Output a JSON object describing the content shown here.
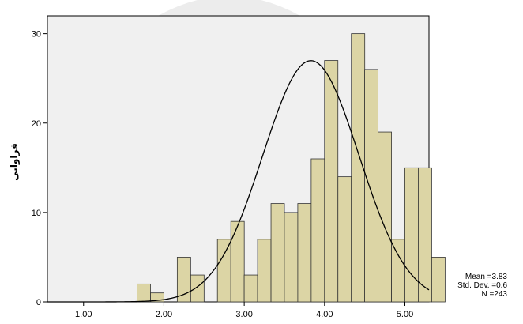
{
  "chart_data": {
    "type": "bar",
    "subtype": "histogram_with_normal_curve",
    "ylabel": "فراوانی",
    "xlabel": "",
    "title": "",
    "xlim": [
      0.55,
      5.3
    ],
    "ylim": [
      0,
      32
    ],
    "x_ticks": [
      "1.00",
      "2.00",
      "3.00",
      "4.00",
      "5.00"
    ],
    "y_ticks": [
      "0",
      "10",
      "20",
      "30"
    ],
    "bin_width": 0.167,
    "bins": [
      {
        "x": 1.75,
        "count": 2
      },
      {
        "x": 1.917,
        "count": 1
      },
      {
        "x": 2.083,
        "count": 0
      },
      {
        "x": 2.25,
        "count": 5
      },
      {
        "x": 2.417,
        "count": 3
      },
      {
        "x": 2.583,
        "count": 0
      },
      {
        "x": 2.75,
        "count": 7
      },
      {
        "x": 2.917,
        "count": 9
      },
      {
        "x": 3.083,
        "count": 3
      },
      {
        "x": 3.25,
        "count": 7
      },
      {
        "x": 3.417,
        "count": 11
      },
      {
        "x": 3.583,
        "count": 10
      },
      {
        "x": 3.75,
        "count": 11
      },
      {
        "x": 3.917,
        "count": 16
      },
      {
        "x": 4.083,
        "count": 27
      },
      {
        "x": 4.25,
        "count": 14
      },
      {
        "x": 4.417,
        "count": 30
      },
      {
        "x": 4.583,
        "count": 26
      },
      {
        "x": 4.75,
        "count": 19
      },
      {
        "x": 4.917,
        "count": 7
      },
      {
        "x": 5.083,
        "count": 15
      },
      {
        "x": 5.25,
        "count": 15
      },
      {
        "x": 5.417,
        "count": 5
      }
    ],
    "normal_curve": {
      "mean": 3.83,
      "sd": 0.6,
      "n": 243
    },
    "grid": false,
    "colors": {
      "bar_fill": "#dcd5a5",
      "bar_stroke": "#333333",
      "plot_bg": "#f0f0f0",
      "curve": "#000000"
    }
  },
  "stats": {
    "mean_label": "Mean =3.83",
    "sd_label": "Std. Dev. =0.6",
    "n_label": "N =243"
  }
}
